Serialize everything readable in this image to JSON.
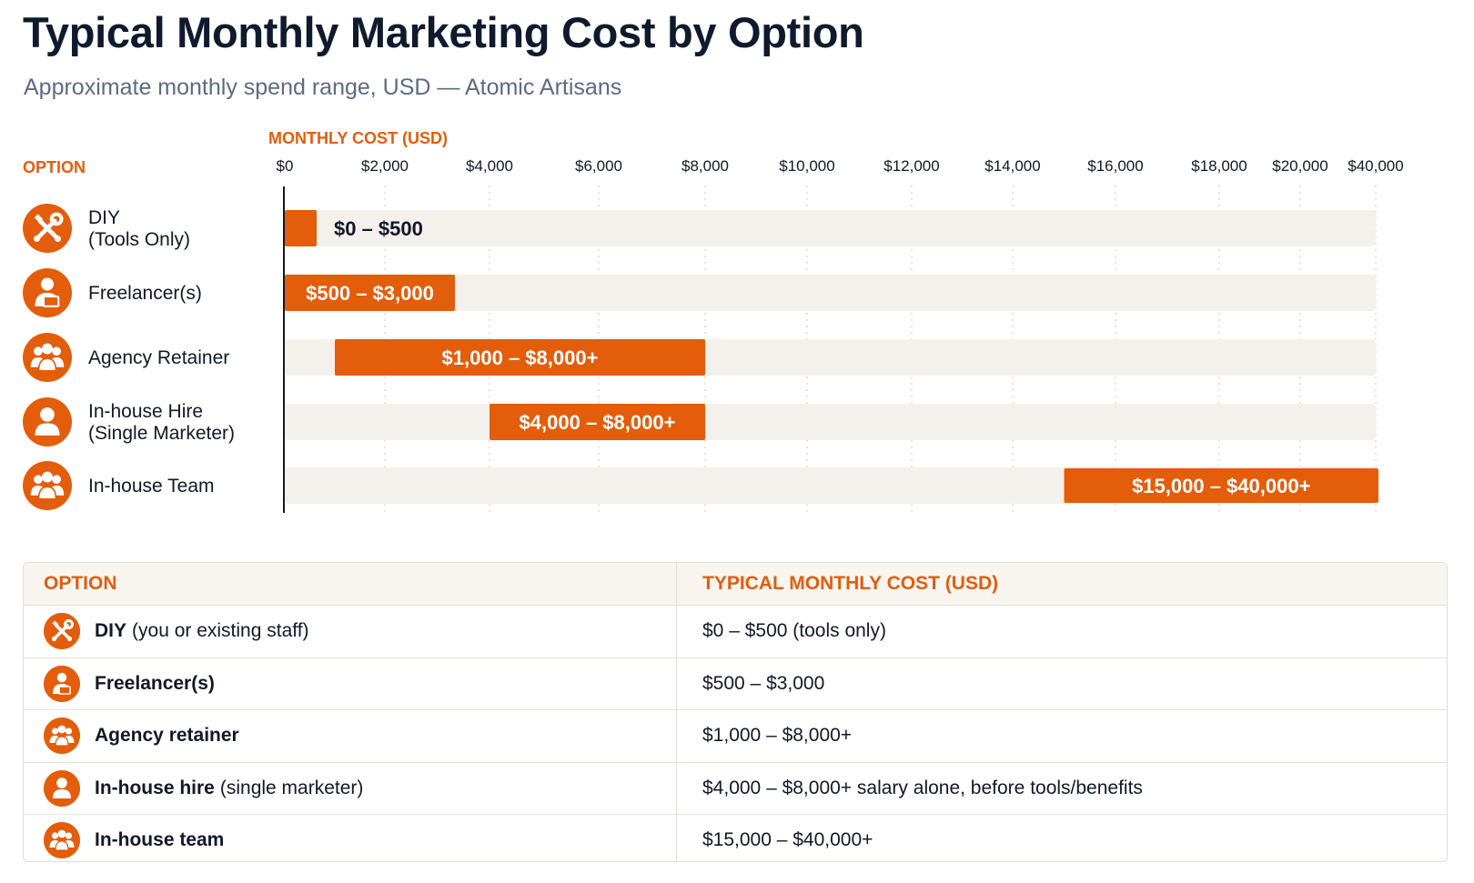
{
  "header": {
    "title": "Typical Monthly Marketing Cost by Option",
    "subtitle": "Approximate monthly spend range, USD — Atomic Artisans"
  },
  "colors": {
    "accent": "#e35d0b",
    "track": "#f4f0ec",
    "title": "#0f1b2d",
    "subtitle": "#5b6b82"
  },
  "chart_data": {
    "type": "bar",
    "subtype": "floating-range-horizontal",
    "axis_title": "MONTHLY COST (USD)",
    "category_header": "OPTION",
    "x_ticks": [
      {
        "label": "$0",
        "value": 0
      },
      {
        "label": "$2,000",
        "value": 2000
      },
      {
        "label": "$4,000",
        "value": 4000
      },
      {
        "label": "$6,000",
        "value": 6000
      },
      {
        "label": "$8,000",
        "value": 8000
      },
      {
        "label": "$10,000",
        "value": 10000
      },
      {
        "label": "$12,000",
        "value": 12000
      },
      {
        "label": "$14,000",
        "value": 14000
      },
      {
        "label": "$16,000",
        "value": 16000
      },
      {
        "label": "$18,000",
        "value": 18000
      },
      {
        "label": "$20,000",
        "value": 20000
      },
      {
        "label": "$40,000",
        "value": 40000
      }
    ],
    "grid": "vertical-dotted",
    "rows": [
      {
        "label": "DIY",
        "sublabel": "(Tools Only)",
        "icon": "tools-icon",
        "low": 0,
        "high": 500,
        "value_label": "$0 – $500",
        "label_position": "outside"
      },
      {
        "label": "Freelancer(s)",
        "sublabel": "",
        "icon": "freelancer-icon",
        "low": 500,
        "high": 3000,
        "value_label": "$500 – $3,000",
        "label_position": "inside"
      },
      {
        "label": "Agency Retainer",
        "sublabel": "",
        "icon": "group-icon",
        "low": 1000,
        "high": 8000,
        "value_label": "$1,000 – $8,000+",
        "label_position": "inside"
      },
      {
        "label": "In-house Hire",
        "sublabel": "(Single Marketer)",
        "icon": "person-icon",
        "low": 4000,
        "high": 8000,
        "value_label": "$4,000 – $8,000+",
        "label_position": "inside"
      },
      {
        "label": "In-house Team",
        "sublabel": "",
        "icon": "group-icon",
        "low": 15000,
        "high": 40000,
        "value_label": "$15,000 – $40,000+",
        "label_position": "inside"
      }
    ]
  },
  "table": {
    "headers": [
      "OPTION",
      "TYPICAL MONTHLY COST (USD)"
    ],
    "rows": [
      {
        "icon": "tools-icon",
        "name": "DIY",
        "note": "(you or existing staff)",
        "cost": "$0 – $500 (tools only)"
      },
      {
        "icon": "freelancer-icon",
        "name": "Freelancer(s)",
        "note": "",
        "cost": "$500 – $3,000"
      },
      {
        "icon": "group-icon",
        "name": "Agency retainer",
        "note": "",
        "cost": "$1,000 – $8,000+"
      },
      {
        "icon": "person-icon",
        "name": "In-house hire",
        "note": "(single marketer)",
        "cost": "$4,000 – $8,000+ salary alone, before tools/benefits"
      },
      {
        "icon": "group-icon",
        "name": "In-house team",
        "note": "",
        "cost": "$15,000 – $40,000+"
      }
    ]
  }
}
